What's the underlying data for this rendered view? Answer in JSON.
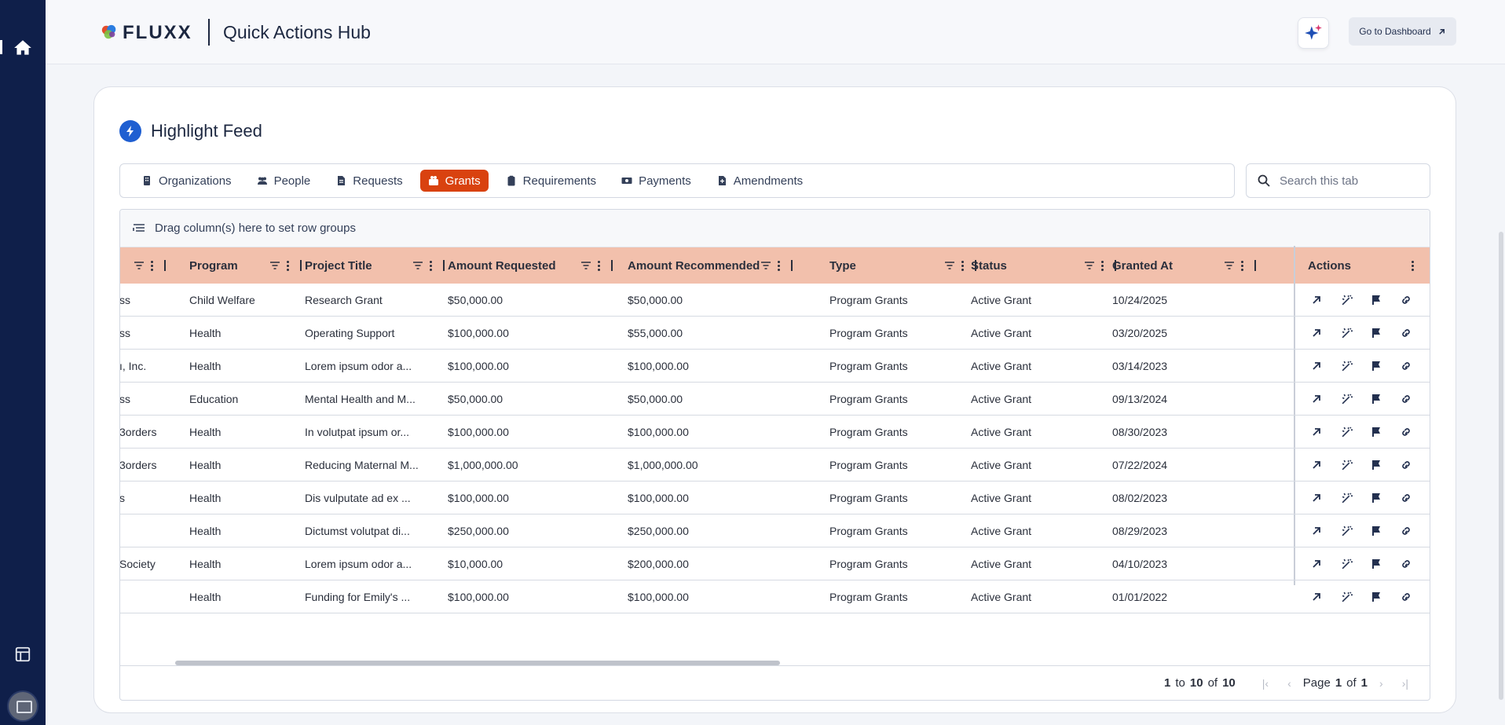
{
  "header": {
    "logo_text": "FLUXX",
    "title": "Quick Actions Hub",
    "dashboard_button": "Go to Dashboard"
  },
  "feed": {
    "title": "Highlight Feed",
    "tabs": [
      {
        "label": "Organizations",
        "icon": "building-icon"
      },
      {
        "label": "People",
        "icon": "people-icon"
      },
      {
        "label": "Requests",
        "icon": "document-icon"
      },
      {
        "label": "Grants",
        "icon": "grants-icon",
        "active": true
      },
      {
        "label": "Requirements",
        "icon": "clipboard-icon"
      },
      {
        "label": "Payments",
        "icon": "money-icon"
      },
      {
        "label": "Amendments",
        "icon": "file-icon"
      }
    ],
    "search_placeholder": "Search this tab"
  },
  "grid": {
    "group_bar_text": "Drag column(s) here to set row groups",
    "columns": [
      "Program",
      "Project Title",
      "Amount Requested",
      "Amount Recommended",
      "Type",
      "Status",
      "Granted At",
      "Actions"
    ],
    "rows": [
      {
        "org": "ss",
        "program": "Child Welfare",
        "title": "Research Grant",
        "requested": "$50,000.00",
        "recommended": "$50,000.00",
        "type": "Program Grants",
        "status": "Active Grant",
        "granted": "10/24/2025"
      },
      {
        "org": "ss",
        "program": "Health",
        "title": "Operating Support",
        "requested": "$100,000.00",
        "recommended": "$55,000.00",
        "type": "Program Grants",
        "status": "Active Grant",
        "granted": "03/20/2025"
      },
      {
        "org": "ı, Inc.",
        "program": "Health",
        "title": "Lorem ipsum odor a...",
        "requested": "$100,000.00",
        "recommended": "$100,000.00",
        "type": "Program Grants",
        "status": "Active Grant",
        "granted": "03/14/2023"
      },
      {
        "org": "ss",
        "program": "Education",
        "title": "Mental Health and M...",
        "requested": "$50,000.00",
        "recommended": "$50,000.00",
        "type": "Program Grants",
        "status": "Active Grant",
        "granted": "09/13/2024"
      },
      {
        "org": "3orders",
        "program": "Health",
        "title": "In volutpat ipsum or...",
        "requested": "$100,000.00",
        "recommended": "$100,000.00",
        "type": "Program Grants",
        "status": "Active Grant",
        "granted": "08/30/2023"
      },
      {
        "org": "3orders",
        "program": "Health",
        "title": "Reducing Maternal M...",
        "requested": "$1,000,000.00",
        "recommended": "$1,000,000.00",
        "type": "Program Grants",
        "status": "Active Grant",
        "granted": "07/22/2024"
      },
      {
        "org": "s",
        "program": "Health",
        "title": "Dis vulputate ad ex ...",
        "requested": "$100,000.00",
        "recommended": "$100,000.00",
        "type": "Program Grants",
        "status": "Active Grant",
        "granted": "08/02/2023"
      },
      {
        "org": "",
        "program": "Health",
        "title": "Dictumst volutpat di...",
        "requested": "$250,000.00",
        "recommended": "$250,000.00",
        "type": "Program Grants",
        "status": "Active Grant",
        "granted": "08/29/2023"
      },
      {
        "org": "Society",
        "program": "Health",
        "title": "Lorem ipsum odor a...",
        "requested": "$10,000.00",
        "recommended": "$200,000.00",
        "type": "Program Grants",
        "status": "Active Grant",
        "granted": "04/10/2023"
      },
      {
        "org": "",
        "program": "Health",
        "title": "Funding for Emily's ...",
        "requested": "$100,000.00",
        "recommended": "$100,000.00",
        "type": "Program Grants",
        "status": "Active Grant",
        "granted": "01/01/2022"
      }
    ],
    "row_actions": [
      "open-arrow-icon",
      "magic-wand-icon",
      "flag-icon",
      "link-icon"
    ]
  },
  "pagination": {
    "from": "1",
    "to_word": "to",
    "to": "10",
    "of_word": "of",
    "total": "10",
    "page_word": "Page",
    "page": "1",
    "pages": "1"
  },
  "colors": {
    "rail": "#0f1f4a",
    "accent": "#d9420f",
    "header_row": "#f2c0ac",
    "bolt": "#1f5fd1"
  }
}
